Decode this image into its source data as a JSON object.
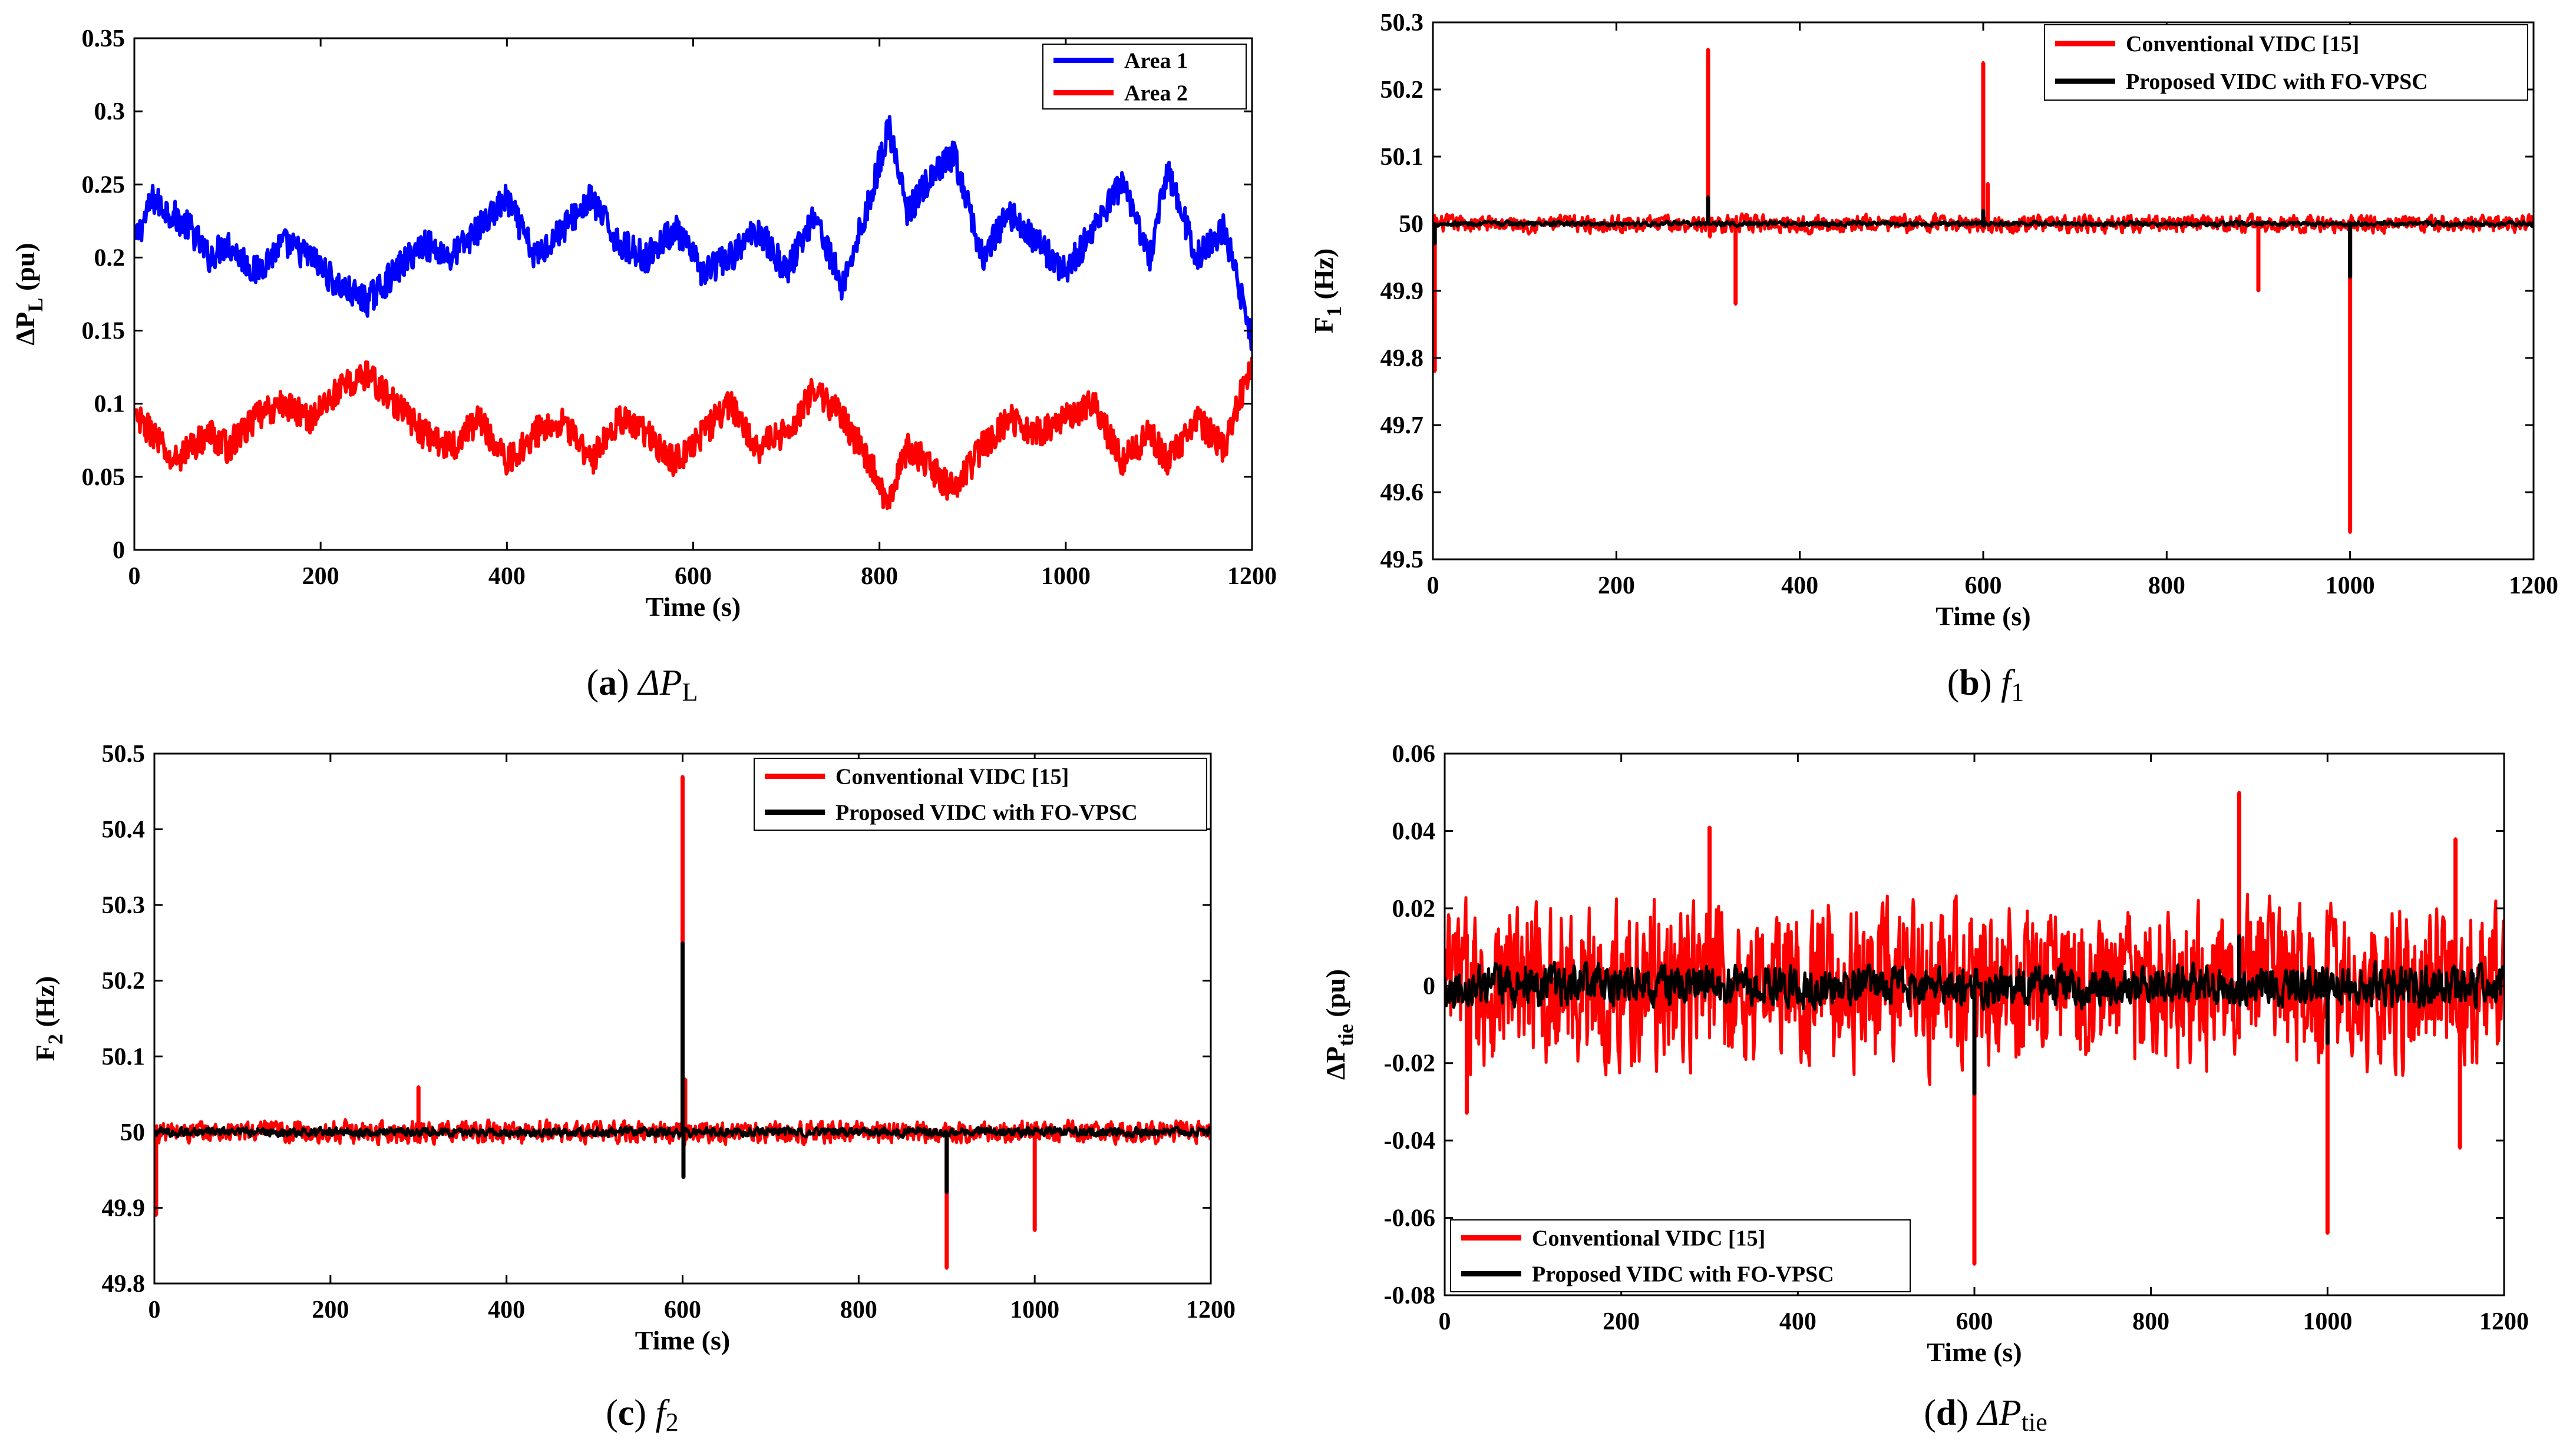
{
  "colors": {
    "blue": "#0000ff",
    "red": "#ff0000",
    "black": "#000000"
  },
  "chart_data": [
    {
      "id": "a",
      "type": "line",
      "caption": {
        "paren_open": "(",
        "letter": "a",
        "paren_close": ")",
        "symbol": "ΔP",
        "sub": "L"
      },
      "xlabel": "Time (s)",
      "ylabel": {
        "main": "ΔP",
        "sub": "L",
        "unit": " (pu)"
      },
      "xlim": [
        0,
        1200
      ],
      "ylim": [
        0,
        0.35
      ],
      "xticks": [
        0,
        200,
        400,
        600,
        800,
        1000,
        1200
      ],
      "yticks": [
        0,
        0.05,
        0.1,
        0.15,
        0.2,
        0.25,
        0.3,
        0.35
      ],
      "ytick_labels": [
        "0",
        "0.05",
        "0.1",
        "0.15",
        "0.2",
        "0.25",
        "0.3",
        "0.35"
      ],
      "legend_position": "top-right",
      "series": [
        {
          "name": "Area 1",
          "color": "#0000ff",
          "x": [
            0,
            20,
            40,
            60,
            80,
            100,
            130,
            160,
            190,
            220,
            250,
            280,
            310,
            340,
            370,
            400,
            430,
            460,
            490,
            520,
            550,
            580,
            610,
            640,
            670,
            700,
            730,
            760,
            790,
            810,
            830,
            850,
            880,
            910,
            940,
            970,
            1000,
            1030,
            1060,
            1090,
            1110,
            1140,
            1170,
            1190,
            1200
          ],
          "values": [
            0.21,
            0.24,
            0.23,
            0.22,
            0.2,
            0.21,
            0.19,
            0.21,
            0.2,
            0.18,
            0.17,
            0.19,
            0.21,
            0.2,
            0.22,
            0.24,
            0.2,
            0.22,
            0.24,
            0.21,
            0.2,
            0.22,
            0.19,
            0.2,
            0.22,
            0.19,
            0.23,
            0.18,
            0.24,
            0.29,
            0.23,
            0.25,
            0.27,
            0.2,
            0.23,
            0.21,
            0.19,
            0.22,
            0.25,
            0.2,
            0.26,
            0.2,
            0.22,
            0.17,
            0.14
          ],
          "spikes": []
        },
        {
          "name": "Area 2",
          "color": "#ff0000",
          "x": [
            0,
            20,
            40,
            60,
            80,
            100,
            130,
            160,
            190,
            220,
            250,
            280,
            310,
            340,
            370,
            400,
            430,
            460,
            490,
            520,
            550,
            580,
            610,
            640,
            670,
            700,
            730,
            760,
            790,
            810,
            830,
            850,
            880,
            910,
            940,
            970,
            1000,
            1030,
            1060,
            1090,
            1110,
            1140,
            1170,
            1190,
            1200
          ],
          "values": [
            0.09,
            0.08,
            0.06,
            0.07,
            0.08,
            0.07,
            0.09,
            0.1,
            0.09,
            0.11,
            0.12,
            0.1,
            0.08,
            0.07,
            0.09,
            0.06,
            0.08,
            0.09,
            0.06,
            0.09,
            0.08,
            0.06,
            0.08,
            0.1,
            0.07,
            0.08,
            0.11,
            0.09,
            0.06,
            0.03,
            0.07,
            0.06,
            0.04,
            0.07,
            0.09,
            0.08,
            0.09,
            0.1,
            0.06,
            0.08,
            0.06,
            0.09,
            0.07,
            0.11,
            0.13
          ],
          "spikes": []
        }
      ]
    },
    {
      "id": "b",
      "type": "line",
      "caption": {
        "paren_open": "(",
        "letter": "b",
        "paren_close": ")",
        "symbol": "f",
        "sub": "1"
      },
      "xlabel": "Time (s)",
      "ylabel": {
        "main": "F",
        "sub": "1",
        "unit": " (Hz)"
      },
      "xlim": [
        0,
        1200
      ],
      "ylim": [
        49.5,
        50.3
      ],
      "xticks": [
        0,
        200,
        400,
        600,
        800,
        1000,
        1200
      ],
      "yticks": [
        49.5,
        49.6,
        49.7,
        49.8,
        49.9,
        50,
        50.1,
        50.2,
        50.3
      ],
      "ytick_labels": [
        "49.5",
        "49.6",
        "49.7",
        "49.8",
        "49.9",
        "50",
        "50.1",
        "50.2",
        "50.3"
      ],
      "legend_position": "top-right",
      "series": [
        {
          "name": "Conventional VIDC [15]",
          "color": "#ff0000",
          "x": [
            0,
            1200
          ],
          "values": [
            50,
            50
          ],
          "noise": 0.022,
          "spikes": [
            [
              2,
              49.78
            ],
            [
              300,
              50.26
            ],
            [
              302,
              49.98
            ],
            [
              330,
              49.88
            ],
            [
              600,
              50.24
            ],
            [
              605,
              50.06
            ],
            [
              900,
              49.9
            ],
            [
              1000,
              49.54
            ],
            [
              1002,
              50.01
            ]
          ]
        },
        {
          "name": "Proposed VIDC with FO-VPSC",
          "color": "#000000",
          "x": [
            0,
            1200
          ],
          "values": [
            50,
            50
          ],
          "noise": 0.006,
          "spikes": [
            [
              2,
              49.97
            ],
            [
              300,
              50.04
            ],
            [
              600,
              50.02
            ],
            [
              1000,
              49.92
            ]
          ]
        }
      ]
    },
    {
      "id": "c",
      "type": "line",
      "caption": {
        "paren_open": "(",
        "letter": "c",
        "paren_close": ")",
        "symbol": "f",
        "sub": "2"
      },
      "xlabel": "Time (s)",
      "ylabel": {
        "main": "F",
        "sub": "2",
        "unit": " (Hz)"
      },
      "xlim": [
        0,
        1200
      ],
      "ylim": [
        49.8,
        50.5
      ],
      "xticks": [
        0,
        200,
        400,
        600,
        800,
        1000,
        1200
      ],
      "yticks": [
        49.8,
        49.9,
        50,
        50.1,
        50.2,
        50.3,
        50.4,
        50.5
      ],
      "ytick_labels": [
        "49.8",
        "49.9",
        "50",
        "50.1",
        "50.2",
        "50.3",
        "50.4",
        "50.5"
      ],
      "legend_position": "top-right",
      "series": [
        {
          "name": "Conventional VIDC [15]",
          "color": "#ff0000",
          "x": [
            0,
            1200
          ],
          "values": [
            50,
            50
          ],
          "noise": 0.025,
          "spikes": [
            [
              2,
              49.89
            ],
            [
              300,
              50.06
            ],
            [
              600,
              50.47
            ],
            [
              603,
              50.07
            ],
            [
              900,
              49.82
            ],
            [
              1000,
              49.87
            ]
          ]
        },
        {
          "name": "Proposed VIDC with FO-VPSC",
          "color": "#000000",
          "x": [
            0,
            1200
          ],
          "values": [
            50,
            50
          ],
          "noise": 0.01,
          "spikes": [
            [
              600,
              50.25
            ],
            [
              601,
              49.94
            ],
            [
              900,
              49.92
            ]
          ]
        }
      ]
    },
    {
      "id": "d",
      "type": "line",
      "caption": {
        "paren_open": "(",
        "letter": "d",
        "paren_close": ")",
        "symbol": "ΔP",
        "sub": "tie"
      },
      "xlabel": "Time (s)",
      "ylabel": {
        "main": "ΔP",
        "sub": "tie",
        "unit": " (pu)"
      },
      "xlim": [
        0,
        1200
      ],
      "ylim": [
        -0.08,
        0.06
      ],
      "xticks": [
        0,
        200,
        400,
        600,
        800,
        1000,
        1200
      ],
      "yticks": [
        -0.08,
        -0.06,
        -0.04,
        -0.02,
        0,
        0.02,
        0.04,
        0.06
      ],
      "ytick_labels": [
        "-0.08",
        "-0.06",
        "-0.04",
        "-0.02",
        "0",
        "0.02",
        "0.04",
        "0.06"
      ],
      "legend_position": "bottom-left",
      "series": [
        {
          "name": "Conventional VIDC [15]",
          "color": "#ff0000",
          "x": [
            0,
            1200
          ],
          "values": [
            0,
            0
          ],
          "noise": 0.035,
          "spikes": [
            [
              25,
              -0.033
            ],
            [
              300,
              0.041
            ],
            [
              600,
              -0.072
            ],
            [
              900,
              0.05
            ],
            [
              1000,
              -0.064
            ],
            [
              1150,
              -0.042
            ],
            [
              1145,
              0.038
            ]
          ]
        },
        {
          "name": "Proposed VIDC with FO-VPSC",
          "color": "#000000",
          "x": [
            0,
            1200
          ],
          "values": [
            0,
            0
          ],
          "noise": 0.009,
          "spikes": [
            [
              600,
              -0.028
            ],
            [
              900,
              0.013
            ],
            [
              1000,
              -0.015
            ]
          ]
        }
      ]
    }
  ]
}
